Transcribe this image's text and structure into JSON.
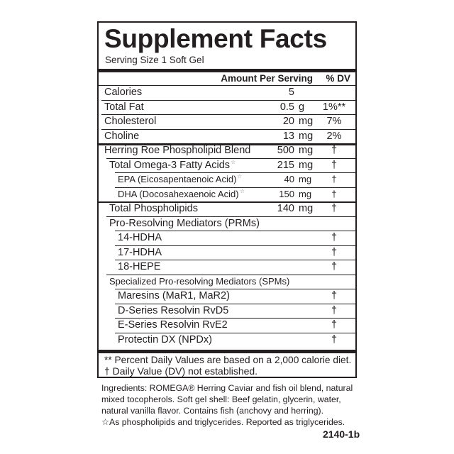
{
  "title": "Supplement Facts",
  "serving_size": "Serving Size 1 Soft Gel",
  "header": {
    "amount": "Amount Per Serving",
    "dv": "% DV"
  },
  "rows": [
    {
      "label": "Calories",
      "amount": "5",
      "unit": "",
      "dv": "",
      "indent": 0
    },
    {
      "label": "Total Fat",
      "amount": "0.5",
      "unit": "g",
      "dv": "1%**",
      "indent": 0
    },
    {
      "label": "Cholesterol",
      "amount": "20",
      "unit": "mg",
      "dv": "7%",
      "indent": 0
    },
    {
      "label": "Choline",
      "amount": "13",
      "unit": "mg",
      "dv": "2%",
      "indent": 0
    },
    {
      "label": "Herring Roe Phospholipid Blend",
      "amount": "500",
      "unit": "mg",
      "dv": "†",
      "indent": 0,
      "thick_above": true
    },
    {
      "label": "Total Omega-3 Fatty Acids",
      "mark": "☆",
      "amount": "215",
      "unit": "mg",
      "dv": "†",
      "indent": 1
    },
    {
      "label": "EPA (Eicosapentaenoic Acid)",
      "mark": "☆",
      "amount": "40",
      "unit": "mg",
      "dv": "†",
      "indent": 2,
      "small": true
    },
    {
      "label": "DHA (Docosahexaenoic Acid)",
      "mark": "☆",
      "amount": "150",
      "unit": "mg",
      "dv": "†",
      "indent": 2,
      "small": true
    },
    {
      "label": "Total Phospholipids",
      "amount": "140",
      "unit": "mg",
      "dv": "†",
      "indent": 1,
      "double_above": true
    },
    {
      "label": "Pro-Resolving Mediators (PRMs)",
      "amount": "",
      "unit": "",
      "dv": "",
      "indent": 1
    },
    {
      "label": "14-HDHA",
      "amount": "",
      "unit": "",
      "dv": "†",
      "indent": 2
    },
    {
      "label": "17-HDHA",
      "amount": "",
      "unit": "",
      "dv": "†",
      "indent": 2
    },
    {
      "label": "18-HEPE",
      "amount": "",
      "unit": "",
      "dv": "†",
      "indent": 2
    },
    {
      "label": "Specialized Pro-resolving Mediators (SPMs)",
      "amount": "",
      "unit": "",
      "dv": "",
      "indent": 1,
      "small": true
    },
    {
      "label": "Maresins (MaR1, MaR2)",
      "amount": "",
      "unit": "",
      "dv": "†",
      "indent": 2
    },
    {
      "label": "D-Series Resolvin RvD5",
      "amount": "",
      "unit": "",
      "dv": "†",
      "indent": 2
    },
    {
      "label": "E-Series Resolvin RvE2",
      "amount": "",
      "unit": "",
      "dv": "†",
      "indent": 2
    },
    {
      "label": "Protectin DX (NPDx)",
      "amount": "",
      "unit": "",
      "dv": "†",
      "indent": 2
    }
  ],
  "footnotes": [
    "** Percent Daily Values are based on a 2,000 calorie diet.",
    "† Daily Value (DV) not established."
  ],
  "ingredients": [
    "Ingredients: ROMEGA® Herring Caviar and fish oil blend, natural",
    "mixed tocopherols. Soft gel shell: Beef gelatin, glycerin, water,",
    "natural vanilla flavor. Contains fish (anchovy and herring).",
    "☆As phospholipids and triglycerides. Reported as triglycerides."
  ],
  "code": "2140-1b"
}
